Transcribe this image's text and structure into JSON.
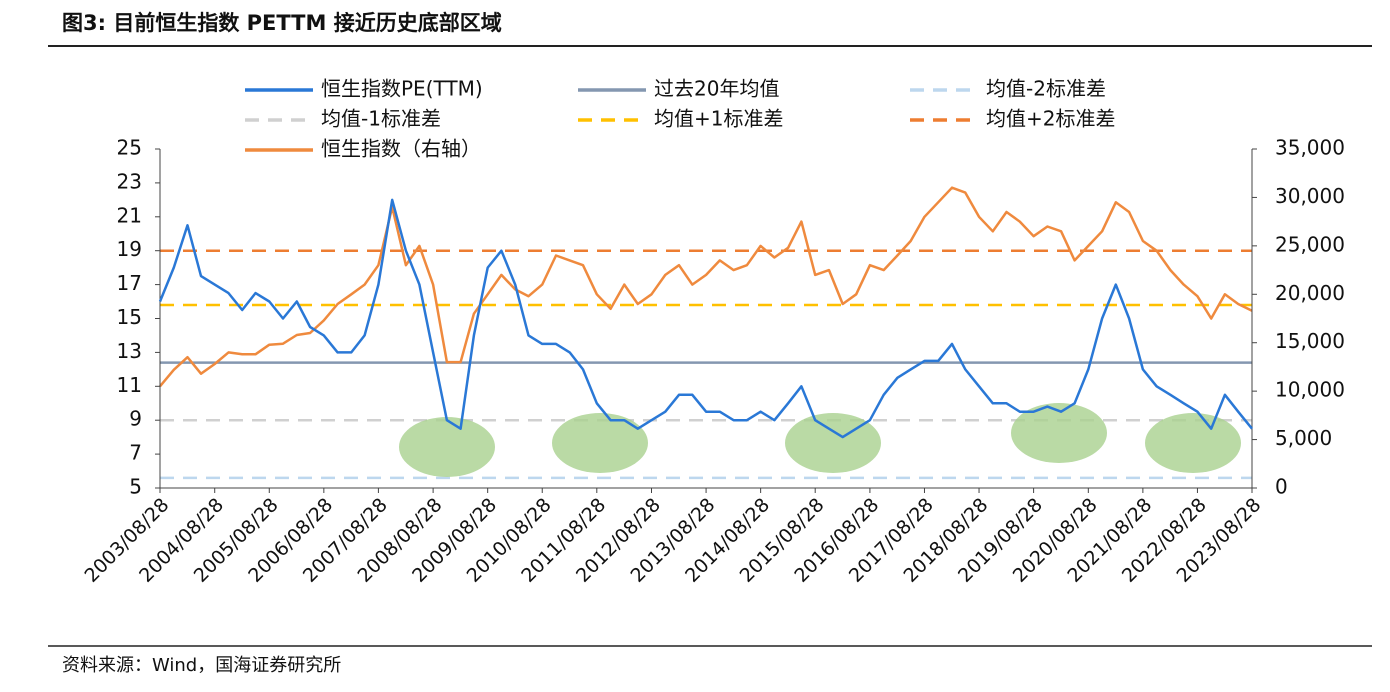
{
  "title": "图3:   目前恒生指数 PETTM 接近历史底部区域",
  "source": "资料来源：Wind，国海证券研究所",
  "chart_data": {
    "type": "line",
    "x": [
      "2003/08/28",
      "2003/11/28",
      "2004/02/28",
      "2004/05/28",
      "2004/08/28",
      "2004/11/28",
      "2005/02/28",
      "2005/05/28",
      "2005/08/28",
      "2005/11/28",
      "2006/02/28",
      "2006/05/28",
      "2006/08/28",
      "2006/11/28",
      "2007/02/28",
      "2007/05/28",
      "2007/08/28",
      "2007/11/28",
      "2008/02/28",
      "2008/05/28",
      "2008/08/28",
      "2008/11/28",
      "2009/02/28",
      "2009/05/28",
      "2009/08/28",
      "2009/11/28",
      "2010/02/28",
      "2010/05/28",
      "2010/08/28",
      "2010/11/28",
      "2011/02/28",
      "2011/05/28",
      "2011/08/28",
      "2011/11/28",
      "2012/02/28",
      "2012/05/28",
      "2012/08/28",
      "2012/11/28",
      "2013/02/28",
      "2013/05/28",
      "2013/08/28",
      "2013/11/28",
      "2014/02/28",
      "2014/05/28",
      "2014/08/28",
      "2014/11/28",
      "2015/02/28",
      "2015/05/28",
      "2015/08/28",
      "2015/11/28",
      "2016/02/28",
      "2016/05/28",
      "2016/08/28",
      "2016/11/28",
      "2017/02/28",
      "2017/05/28",
      "2017/08/28",
      "2017/11/28",
      "2018/02/28",
      "2018/05/28",
      "2018/08/28",
      "2018/11/28",
      "2019/02/28",
      "2019/05/28",
      "2019/08/28",
      "2019/11/28",
      "2020/02/28",
      "2020/05/28",
      "2020/08/28",
      "2020/11/28",
      "2021/02/28",
      "2021/05/28",
      "2021/08/28",
      "2021/11/28",
      "2022/02/28",
      "2022/05/28",
      "2022/08/28",
      "2022/11/28",
      "2023/02/28",
      "2023/05/28",
      "2023/08/28"
    ],
    "xticks": [
      "2003/08/28",
      "2004/08/28",
      "2005/08/28",
      "2006/08/28",
      "2007/08/28",
      "2008/08/28",
      "2009/08/28",
      "2010/08/28",
      "2011/08/28",
      "2012/08/28",
      "2013/08/28",
      "2014/08/28",
      "2015/08/28",
      "2016/08/28",
      "2017/08/28",
      "2018/08/28",
      "2019/08/28",
      "2020/08/28",
      "2021/08/28",
      "2022/08/28",
      "2023/08/28"
    ],
    "ylim": [
      5,
      25
    ],
    "yticks": [
      5,
      7,
      9,
      11,
      13,
      15,
      17,
      19,
      21,
      23,
      25
    ],
    "y2lim": [
      0,
      35000
    ],
    "y2ticks": [
      {
        "value": 0,
        "label": "0"
      },
      {
        "value": 5000,
        "label": "5,000"
      },
      {
        "value": 10000,
        "label": "10,000"
      },
      {
        "value": 15000,
        "label": "15,000"
      },
      {
        "value": 20000,
        "label": "20,000"
      },
      {
        "value": 25000,
        "label": "25,000"
      },
      {
        "value": 30000,
        "label": "30,000"
      },
      {
        "value": 35000,
        "label": "35,000"
      }
    ],
    "series": [
      {
        "name": "恒生指数PE(TTM)",
        "color": "#2a78d6",
        "values": [
          16,
          18,
          20.5,
          17.5,
          17,
          16.5,
          15.5,
          16.5,
          16,
          15,
          16,
          14.5,
          14,
          13,
          13,
          14,
          17,
          22,
          19,
          17,
          13,
          9,
          8.5,
          14,
          18,
          19,
          17,
          14,
          13.5,
          13.5,
          13,
          12,
          10,
          9,
          9,
          8.5,
          9,
          9.5,
          10.5,
          10.5,
          9.5,
          9.5,
          9,
          9,
          9.5,
          9,
          10,
          11,
          9,
          8.5,
          8,
          8.5,
          9,
          10.5,
          11.5,
          12,
          12.5,
          12.5,
          13.5,
          12,
          11,
          10,
          10,
          9.5,
          9.5,
          9.8,
          9.5,
          10,
          12,
          15,
          17,
          15,
          12,
          11,
          10.5,
          10,
          9.5,
          8.5,
          10.5,
          9.5,
          8.5
        ]
      },
      {
        "name": "过去20年均值",
        "color": "#8497b0",
        "value": 12.4
      },
      {
        "name": "均值-2标准差",
        "color": "#bdd7ee",
        "value": 5.6,
        "dashed": true
      },
      {
        "name": "均值-1标准差",
        "color": "#d0d0d0",
        "value": 9,
        "dashed": true
      },
      {
        "name": "均值+1标准差",
        "color": "#ffc000",
        "value": 15.8,
        "dashed": true
      },
      {
        "name": "均值+2标准差",
        "color": "#ed7d31",
        "value": 19,
        "dashed": true
      },
      {
        "name": "恒生指数（右轴）",
        "color": "#ef8a3e",
        "axis": "y2",
        "values": [
          10500,
          12200,
          13500,
          11800,
          12800,
          14000,
          13800,
          13800,
          14800,
          14900,
          15800,
          16000,
          17300,
          19000,
          20000,
          21000,
          23000,
          29000,
          23000,
          25000,
          21000,
          13000,
          13000,
          18000,
          20000,
          22000,
          20500,
          19800,
          21000,
          24000,
          23500,
          23000,
          20000,
          18500,
          21000,
          19000,
          20000,
          22000,
          23000,
          21000,
          22000,
          23500,
          22500,
          23000,
          25000,
          23800,
          24800,
          27500,
          22000,
          22500,
          19000,
          20000,
          23000,
          22500,
          24000,
          25500,
          28000,
          29500,
          31000,
          30500,
          28000,
          26500,
          28500,
          27500,
          26000,
          27000,
          26500,
          23500,
          25000,
          26500,
          29500,
          28500,
          25500,
          24500,
          22500,
          21000,
          19800,
          17500,
          20000,
          19000,
          18300
        ]
      }
    ]
  }
}
